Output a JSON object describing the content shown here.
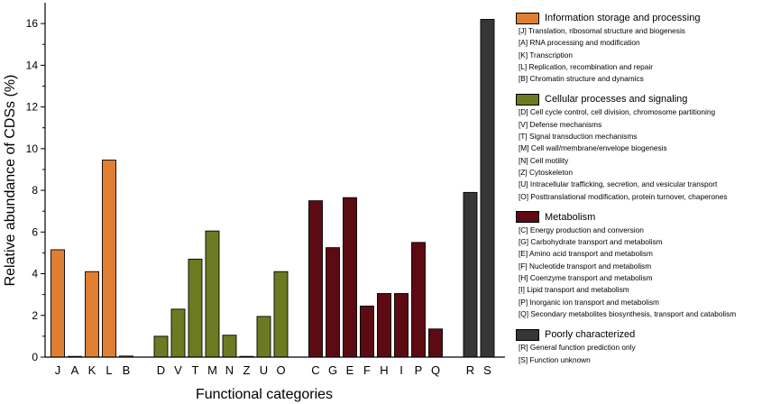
{
  "chart_data": {
    "type": "bar",
    "xlabel": "Functional categories",
    "ylabel": "Relative abundance of CDSs (%)",
    "ylim": [
      0,
      17
    ],
    "yticks": [
      0,
      2,
      4,
      6,
      8,
      10,
      12,
      14,
      16
    ],
    "groups": [
      {
        "name": "Information storage and processing",
        "color": "#e07f32",
        "items": [
          {
            "code": "J",
            "value": 5.15,
            "desc": "[J] Translation, ribosomal structure and biogenesis"
          },
          {
            "code": "A",
            "value": 0.02,
            "desc": "[A] RNA processing and modification"
          },
          {
            "code": "K",
            "value": 4.1,
            "desc": "[K] Transcription"
          },
          {
            "code": "L",
            "value": 9.45,
            "desc": "[L] Replication, recombination and repair"
          },
          {
            "code": "B",
            "value": 0.05,
            "desc": "[B] Chromatin structure and dynamics"
          }
        ]
      },
      {
        "name": "Cellular processes and signaling",
        "color": "#6e7a22",
        "items": [
          {
            "code": "D",
            "value": 1.0,
            "desc": "[D]  Cell cycle control, cell division, chromosome partitioning"
          },
          {
            "code": "V",
            "value": 2.3,
            "desc": "[V] Defense mechanisms"
          },
          {
            "code": "T",
            "value": 4.7,
            "desc": "[T] Signal transduction mechanisms"
          },
          {
            "code": "M",
            "value": 6.05,
            "desc": "[M] Cell wall/membrane/envelope biogenesis"
          },
          {
            "code": "N",
            "value": 1.05,
            "desc": "[N] Cell motility"
          },
          {
            "code": "Z",
            "value": 0.0,
            "desc": "[Z] Cytoskeleton"
          },
          {
            "code": "U",
            "value": 1.95,
            "desc": "[U] Intracellular trafficking, secretion, and vesicular transport"
          },
          {
            "code": "O",
            "value": 4.1,
            "desc": "[O] Posttranslational modification, protein turnover, chaperones"
          }
        ]
      },
      {
        "name": "Metabolism",
        "color": "#5c0b12",
        "items": [
          {
            "code": "C",
            "value": 7.5,
            "desc": "[C] Energy production and conversion"
          },
          {
            "code": "G",
            "value": 5.25,
            "desc": "[G] Carbohydrate transport and metabolism"
          },
          {
            "code": "E",
            "value": 7.65,
            "desc": "[E] Amino acid transport and metabolism"
          },
          {
            "code": "F",
            "value": 2.45,
            "desc": "[F] Nucleotide transport and metabolism"
          },
          {
            "code": "H",
            "value": 3.05,
            "desc": "[H] Coenzyme transport and metabolism"
          },
          {
            "code": "I",
            "value": 3.05,
            "desc": "[I] Lipid transport and metabolism"
          },
          {
            "code": "P",
            "value": 5.5,
            "desc": "[P] Inorganic ion transport and metabolism"
          },
          {
            "code": "Q",
            "value": 1.35,
            "desc": "[Q] Secondary metabolites biosynthesis, transport and catabolism"
          }
        ]
      },
      {
        "name": "Poorly characterized",
        "color": "#363636",
        "items": [
          {
            "code": "R",
            "value": 7.9,
            "desc": "[R] General function prediction only"
          },
          {
            "code": "S",
            "value": 16.2,
            "desc": "[S] Function unknown"
          }
        ]
      }
    ],
    "legend_position": "right"
  }
}
